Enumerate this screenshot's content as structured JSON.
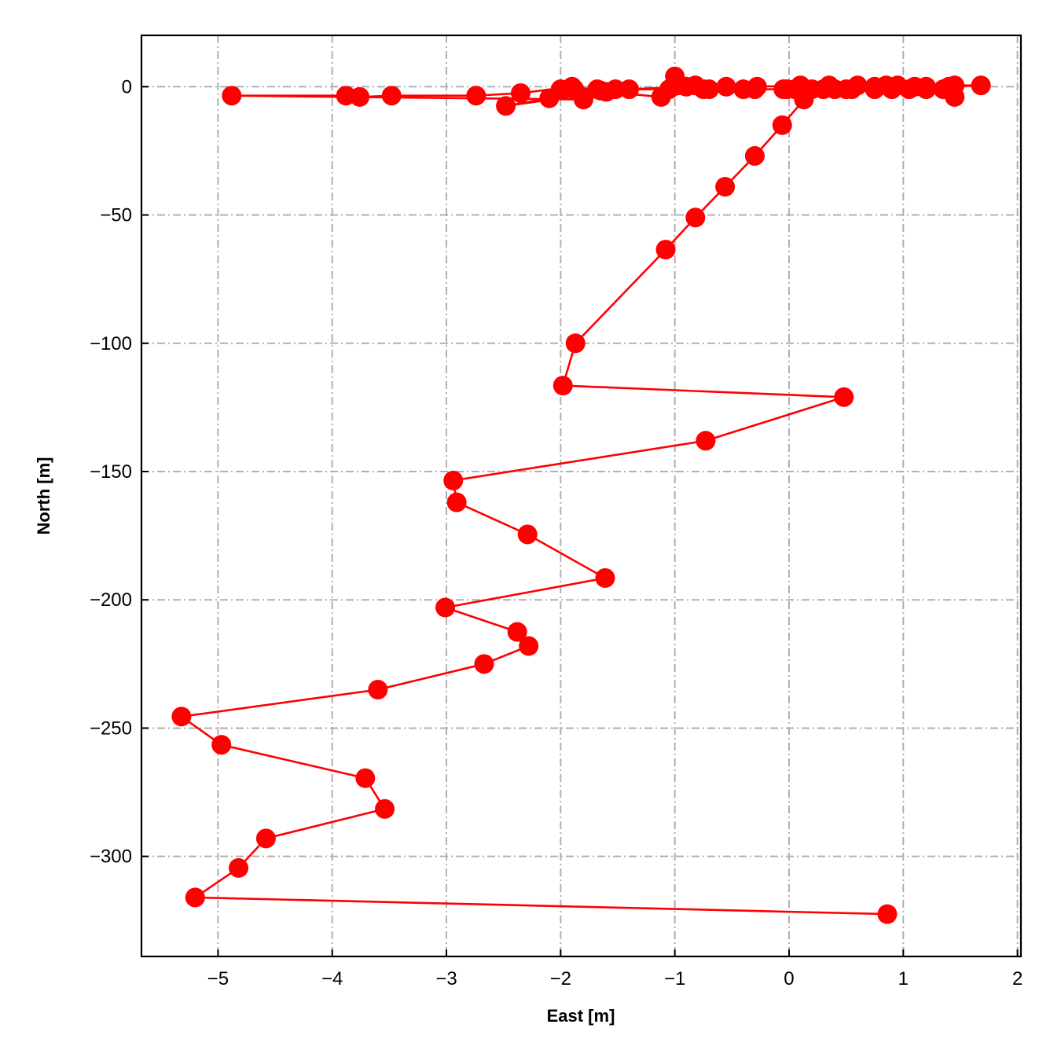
{
  "chart_data": {
    "type": "line",
    "title": "",
    "xlabel": "East [m]",
    "ylabel": "North [m]",
    "xlim": [
      -5.67,
      2.03
    ],
    "ylim": [
      -339,
      20
    ],
    "x_ticks": [
      "−5",
      "−4",
      "−3",
      "−2",
      "−1",
      "0",
      "1",
      "2"
    ],
    "y_ticks": [
      "0",
      "−50",
      "−100",
      "−150",
      "−200",
      "−250",
      "−300"
    ],
    "x_tick_values": [
      -5,
      -4,
      -3,
      -2,
      -1,
      0,
      1,
      2
    ],
    "y_tick_values": [
      0,
      -50,
      -100,
      -150,
      -200,
      -250,
      -300
    ],
    "grid": true,
    "series": [
      {
        "color": "#ff0000",
        "marker": "circle",
        "x": [
          0.86,
          -5.2,
          -4.82,
          -4.58,
          -3.54,
          -3.71,
          -4.97,
          -5.32,
          -3.6,
          -2.67,
          -2.28,
          -2.38,
          -3.01,
          -1.61,
          -2.29,
          -2.91,
          -2.94,
          -0.73,
          0.48,
          -1.98,
          -1.87,
          -1.08,
          -0.82,
          -0.56,
          -0.3,
          -0.06,
          0.13,
          0.3,
          0.5,
          0.75,
          0.95,
          1.2,
          1.45,
          1.68,
          1.4,
          1.1,
          0.85,
          0.6,
          0.35,
          0.1,
          -0.28,
          -0.55,
          -0.82,
          -1.0,
          -0.9,
          -1.4,
          -1.65,
          -1.9,
          -2.35,
          -2.74,
          -3.48,
          -3.76,
          -3.88,
          -4.88,
          -1.8,
          -2.1,
          -2.48,
          -1.6,
          -1.12,
          -0.7,
          -0.3,
          0.05,
          0.4,
          0.75,
          1.05,
          1.35,
          1.45,
          1.2,
          0.9,
          0.55,
          0.2,
          -0.05,
          -0.4,
          -0.75,
          -1.05,
          -1.52,
          -1.88,
          -2.0,
          -1.68,
          -0.02
        ],
        "y": [
          -322.5,
          -316,
          -304.5,
          -293,
          -281.5,
          -269.5,
          -256.5,
          -245.5,
          -235,
          -225,
          -218,
          -212.5,
          -203,
          -191.5,
          -174.5,
          -162,
          -153.5,
          -138,
          -121,
          -116.5,
          -100,
          -63.5,
          -51,
          -39,
          -27,
          -15,
          -5,
          -1,
          -1,
          0,
          0.5,
          0,
          0.5,
          0.5,
          0,
          0,
          0.5,
          0.5,
          0.5,
          0.5,
          0,
          0,
          0.5,
          4,
          0,
          -1,
          -1.5,
          0,
          -2.5,
          -3.5,
          -3.5,
          -4,
          -3.5,
          -3.5,
          -5,
          -4.5,
          -7.5,
          -2,
          -4,
          -1,
          -1,
          -1,
          -1,
          -1,
          -1,
          -1,
          -4,
          -1,
          -1,
          -1,
          -1,
          -1,
          -1,
          -1,
          -1,
          -1,
          -1,
          -1,
          -1,
          -1
        ]
      }
    ]
  }
}
